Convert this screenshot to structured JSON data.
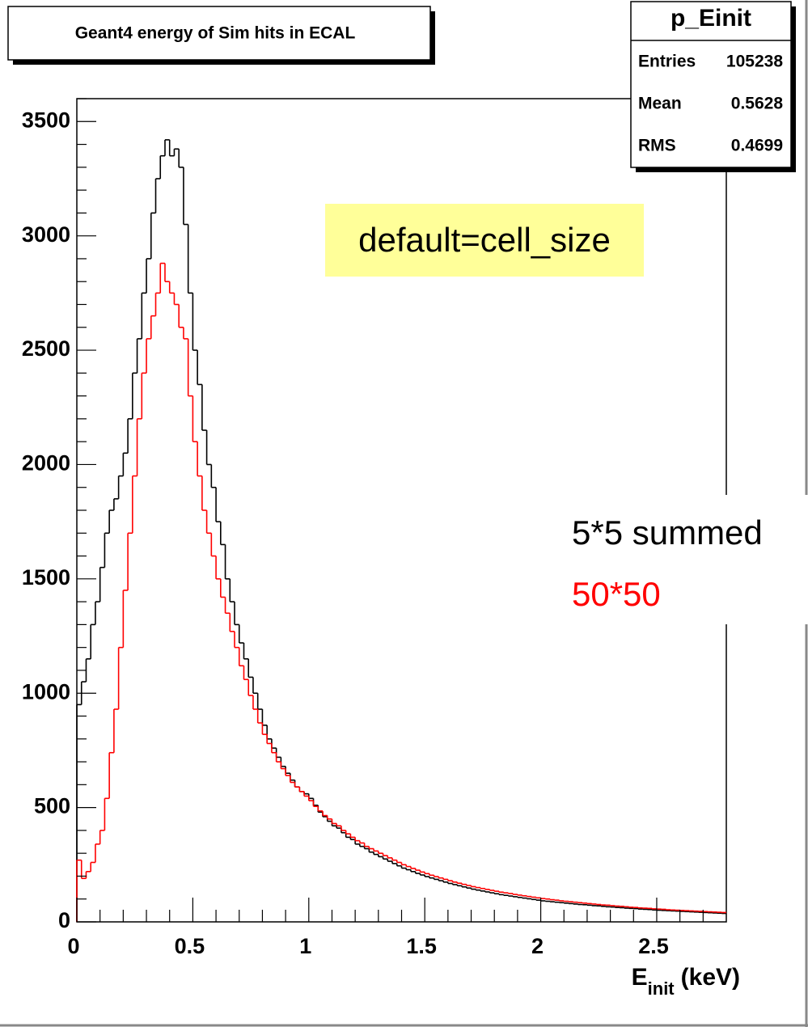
{
  "chart_data": {
    "type": "histogram",
    "title": "Geant4 energy of Sim hits in ECAL",
    "stats": {
      "title": "p_Einit",
      "rows": [
        {
          "label": "Entries",
          "value": 105238
        },
        {
          "label": "Mean",
          "value": 0.5628
        },
        {
          "label": "RMS",
          "value": 0.4699
        }
      ]
    },
    "annotation": "default=cell_size",
    "xlabel": {
      "main": "E",
      "sub": "init",
      "unit": "(keV)"
    },
    "xlim": [
      0,
      2.8
    ],
    "xticks": [
      0,
      0.5,
      1,
      1.5,
      2,
      2.5
    ],
    "ylim": [
      0,
      3600
    ],
    "yticks": [
      0,
      500,
      1000,
      1500,
      2000,
      2500,
      3000,
      3500
    ],
    "xminorticks": [
      0.1,
      0.2,
      0.3,
      0.4,
      0.6,
      0.7,
      0.8,
      0.9,
      1.1,
      1.2,
      1.3,
      1.4,
      1.6,
      1.7,
      1.8,
      1.9,
      2.1,
      2.2,
      2.3,
      2.4,
      2.6,
      2.7
    ],
    "yminorticks": [
      100,
      200,
      300,
      400,
      600,
      700,
      800,
      900,
      1100,
      1200,
      1300,
      1400,
      1600,
      1700,
      1800,
      1900,
      2100,
      2200,
      2300,
      2400,
      2600,
      2700,
      2800,
      2900,
      3100,
      3200,
      3300,
      3400,
      3600
    ],
    "bins": [
      0,
      0.02,
      0.04,
      0.06,
      0.08,
      0.1,
      0.12,
      0.14,
      0.16,
      0.18,
      0.2,
      0.22,
      0.24,
      0.26,
      0.28,
      0.3,
      0.32,
      0.34,
      0.36,
      0.38,
      0.4,
      0.42,
      0.44,
      0.46,
      0.48,
      0.5,
      0.52,
      0.54,
      0.56,
      0.58,
      0.6,
      0.62,
      0.64,
      0.66,
      0.68,
      0.7,
      0.72,
      0.74,
      0.76,
      0.78,
      0.8,
      0.82,
      0.84,
      0.86,
      0.88,
      0.9,
      0.92,
      0.94,
      0.96,
      0.98,
      1,
      1.02,
      1.04,
      1.06,
      1.08,
      1.1,
      1.12,
      1.14,
      1.16,
      1.18,
      1.2,
      1.22,
      1.24,
      1.26,
      1.28,
      1.3,
      1.32,
      1.34,
      1.36,
      1.38,
      1.4,
      1.42,
      1.44,
      1.46,
      1.48,
      1.5,
      1.52,
      1.54,
      1.56,
      1.58,
      1.6,
      1.62,
      1.64,
      1.66,
      1.68,
      1.7,
      1.72,
      1.74,
      1.76,
      1.78,
      1.8,
      1.82,
      1.84,
      1.86,
      1.88,
      1.9,
      1.92,
      1.94,
      1.96,
      1.98,
      2,
      2.02,
      2.04,
      2.06,
      2.08,
      2.1,
      2.12,
      2.14,
      2.16,
      2.18,
      2.2,
      2.22,
      2.24,
      2.26,
      2.28,
      2.3,
      2.32,
      2.34,
      2.36,
      2.38,
      2.4,
      2.42,
      2.44,
      2.46,
      2.48,
      2.5,
      2.52,
      2.54,
      2.56,
      2.58,
      2.6,
      2.62,
      2.64,
      2.66,
      2.68,
      2.7,
      2.72,
      2.74,
      2.76,
      2.78,
      2.8
    ],
    "series": [
      {
        "name": "5*5 summed",
        "color": "#000000",
        "values": [
          950,
          1050,
          1150,
          1300,
          1400,
          1550,
          1700,
          1800,
          1850,
          1950,
          2050,
          2200,
          2400,
          2550,
          2750,
          2900,
          3100,
          3250,
          3350,
          3420,
          3350,
          3380,
          3300,
          3050,
          2750,
          2500,
          2350,
          2150,
          2000,
          1900,
          1750,
          1650,
          1500,
          1400,
          1300,
          1220,
          1150,
          1070,
          1000,
          930,
          860,
          800,
          760,
          720,
          680,
          650,
          620,
          590,
          570,
          560,
          540,
          510,
          480,
          460,
          440,
          420,
          410,
          390,
          370,
          360,
          340,
          330,
          320,
          305,
          295,
          285,
          275,
          265,
          255,
          245,
          235,
          228,
          220,
          212,
          205,
          198,
          192,
          186,
          180,
          174,
          168,
          163,
          158,
          153,
          148,
          143,
          139,
          135,
          131,
          127,
          123,
          119,
          116,
          113,
          110,
          107,
          104,
          101,
          98,
          95,
          92,
          90,
          88,
          86,
          84,
          82,
          80,
          78,
          76,
          75,
          73,
          71,
          70,
          68,
          66,
          65,
          63,
          62,
          60,
          59,
          58,
          56,
          55,
          54,
          52,
          51,
          50,
          49,
          48,
          47,
          46,
          45,
          44,
          43,
          42,
          41,
          40,
          39,
          38,
          37
        ]
      },
      {
        "name": "50*50",
        "color": "#ff0000",
        "values": [
          270,
          190,
          220,
          260,
          340,
          400,
          540,
          740,
          930,
          1200,
          1450,
          1700,
          1950,
          2200,
          2400,
          2550,
          2650,
          2750,
          2880,
          2800,
          2750,
          2700,
          2600,
          2550,
          2300,
          2100,
          1950,
          1800,
          1700,
          1600,
          1500,
          1420,
          1350,
          1270,
          1200,
          1120,
          1060,
          990,
          930,
          870,
          820,
          780,
          740,
          700,
          670,
          640,
          610,
          590,
          570,
          550,
          530,
          505,
          485,
          465,
          450,
          430,
          420,
          400,
          385,
          370,
          355,
          345,
          330,
          320,
          310,
          300,
          290,
          280,
          270,
          260,
          250,
          242,
          234,
          226,
          218,
          211,
          204,
          198,
          192,
          186,
          180,
          174,
          169,
          164,
          159,
          154,
          150,
          146,
          142,
          138,
          134,
          130,
          127,
          124,
          120,
          117,
          114,
          111,
          108,
          105,
          102,
          100,
          97,
          95,
          92,
          90,
          88,
          86,
          84,
          82,
          80,
          78,
          76,
          74,
          73,
          71,
          69,
          68,
          66,
          64,
          63,
          61,
          60,
          59,
          57,
          56,
          55,
          53,
          52,
          51,
          50,
          49,
          48,
          47,
          46,
          45,
          44,
          43,
          42,
          41
        ]
      }
    ]
  }
}
